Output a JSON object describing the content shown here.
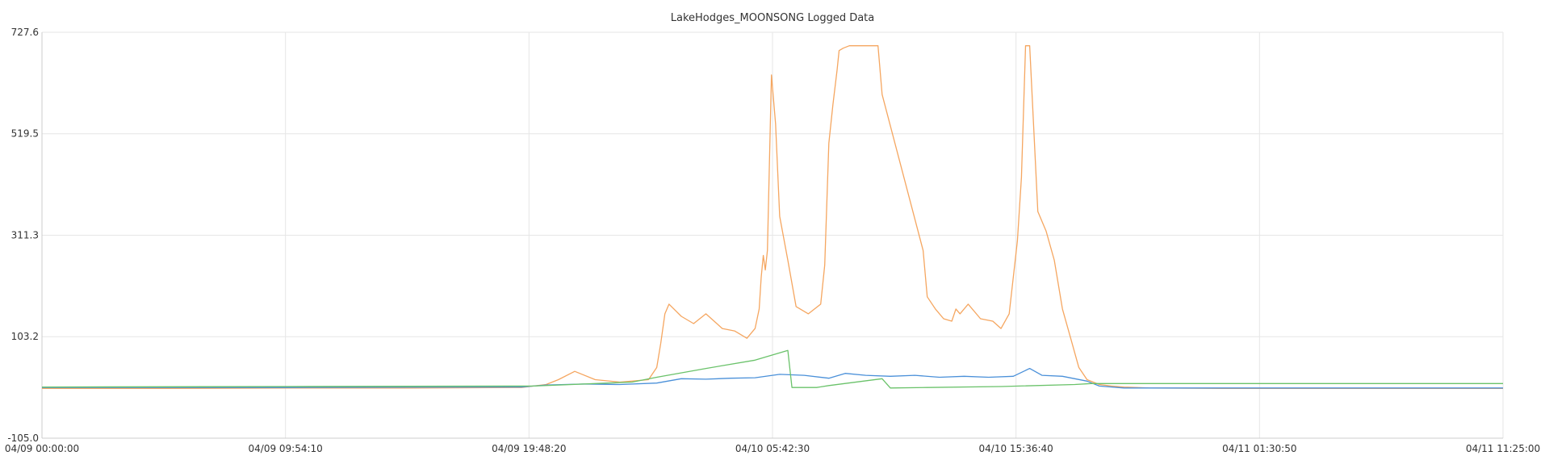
{
  "chart_data": {
    "type": "line",
    "title": "LakeHodges_MOONSONG Logged Data",
    "xlabel": "",
    "ylabel": "",
    "x_ticks": [
      "04/09 00:00:00",
      "04/09 09:54:10",
      "04/09 19:48:20",
      "04/10 05:42:30",
      "04/10 15:36:40",
      "04/11 01:30:50",
      "04/11 11:25:00"
    ],
    "xlim": [
      "04/09 00:00:00",
      "04/11 11:25:00"
    ],
    "y_ticks": [
      "727.6",
      "519.5",
      "311.3",
      "103.2",
      "-105.0"
    ],
    "ylim": [
      -105.0,
      727.6
    ],
    "grid": true,
    "legend": "none",
    "series": [
      {
        "color": "#f5a660",
        "x": [
          "04/09 00:00:00",
          "04/09 05:00:00",
          "04/09 10:00:00",
          "04/09 15:00:00",
          "04/09 19:30:00",
          "04/09 20:30:00",
          "04/09 21:00:00",
          "04/09 21:40:00",
          "04/09 22:30:00",
          "04/09 23:30:00",
          "04/10 00:40:00",
          "04/10 01:00:00",
          "04/10 01:10:00",
          "04/10 01:20:00",
          "04/10 01:30:00",
          "04/10 02:00:00",
          "04/10 02:30:00",
          "04/10 03:00:00",
          "04/10 03:40:00",
          "04/10 04:10:00",
          "04/10 04:40:00",
          "04/10 05:00:00",
          "04/10 05:10:00",
          "04/10 05:15:00",
          "04/10 05:20:00",
          "04/10 05:25:00",
          "04/10 05:30:00",
          "04/10 05:40:00",
          "04/10 05:50:00",
          "04/10 06:00:00",
          "04/10 06:20:00",
          "04/10 06:40:00",
          "04/10 07:10:00",
          "04/10 07:40:00",
          "04/10 07:50:00",
          "04/10 08:00:00",
          "04/10 08:10:00",
          "04/10 08:20:00",
          "04/10 08:25:00",
          "04/10 08:35:00",
          "04/10 08:50:00",
          "04/10 09:10:00",
          "04/10 09:30:00",
          "04/10 10:00:00",
          "04/10 10:10:00",
          "04/10 11:50:00",
          "04/10 12:00:00",
          "04/10 12:20:00",
          "04/10 12:40:00",
          "04/10 13:00:00",
          "04/10 13:10:00",
          "04/10 13:20:00",
          "04/10 13:40:00",
          "04/10 14:10:00",
          "04/10 14:40:00",
          "04/10 15:00:00",
          "04/10 15:20:00",
          "04/10 15:40:00",
          "04/10 15:50:00",
          "04/10 16:00:00",
          "04/10 16:10:00",
          "04/10 16:30:00",
          "04/10 16:50:00",
          "04/10 17:10:00",
          "04/10 17:30:00",
          "04/10 17:50:00",
          "04/10 18:10:00",
          "04/10 18:30:00",
          "04/10 19:00:00",
          "04/10 19:30:00",
          "04/10 20:00:00",
          "04/10 21:00:00",
          "04/11 00:00:00",
          "04/11 05:00:00",
          "04/11 11:25:00"
        ],
        "y": [
          -3,
          -3,
          -2,
          -2,
          -1,
          5,
          15,
          32,
          15,
          10,
          15,
          40,
          90,
          150,
          170,
          145,
          130,
          150,
          120,
          115,
          100,
          120,
          160,
          225,
          270,
          240,
          280,
          640,
          540,
          350,
          260,
          165,
          150,
          170,
          250,
          500,
          580,
          650,
          690,
          695,
          700,
          700,
          700,
          700,
          600,
          280,
          185,
          160,
          140,
          135,
          160,
          150,
          170,
          140,
          135,
          120,
          150,
          300,
          430,
          700,
          700,
          360,
          320,
          260,
          160,
          100,
          40,
          15,
          5,
          2,
          0,
          -2,
          -3,
          -3,
          -3
        ]
      },
      {
        "color": "#4a90d9",
        "x": [
          "04/09 00:00:00",
          "04/09 10:00:00",
          "04/09 19:30:00",
          "04/09 20:30:00",
          "04/09 22:00:00",
          "04/09 23:30:00",
          "04/10 01:00:00",
          "04/10 02:00:00",
          "04/10 03:00:00",
          "04/10 04:00:00",
          "04/10 05:00:00",
          "04/10 06:00:00",
          "04/10 07:00:00",
          "04/10 08:00:00",
          "04/10 08:40:00",
          "04/10 09:30:00",
          "04/10 10:30:00",
          "04/10 11:30:00",
          "04/10 12:30:00",
          "04/10 13:30:00",
          "04/10 14:30:00",
          "04/10 15:30:00",
          "04/10 16:10:00",
          "04/10 16:40:00",
          "04/10 17:30:00",
          "04/10 18:30:00",
          "04/10 19:00:00",
          "04/10 20:00:00",
          "04/11 11:25:00"
        ],
        "y": [
          -1,
          -1,
          0,
          4,
          6,
          5,
          8,
          17,
          16,
          18,
          19,
          26,
          24,
          18,
          28,
          24,
          22,
          24,
          20,
          22,
          20,
          22,
          38,
          24,
          22,
          12,
          2,
          -2,
          -2
        ]
      },
      {
        "color": "#6ac26a",
        "x": [
          "04/09 00:00:00",
          "04/09 10:00:00",
          "04/09 20:00:00",
          "04/09 23:00:00",
          "04/10 00:00:00",
          "04/10 01:00:00",
          "04/10 03:00:00",
          "04/10 05:00:00",
          "04/10 06:20:00",
          "04/10 06:30:00",
          "04/10 07:30:00",
          "04/10 08:00:00",
          "04/10 10:10:00",
          "04/10 10:30:00",
          "04/10 12:00:00",
          "04/10 15:00:00",
          "04/10 18:00:00",
          "04/10 18:40:00",
          "04/11 11:25:00"
        ],
        "y": [
          0,
          1,
          2,
          8,
          10,
          20,
          38,
          55,
          75,
          -1,
          -1,
          3,
          17,
          -2,
          -1,
          1,
          5,
          7,
          7
        ]
      }
    ]
  }
}
